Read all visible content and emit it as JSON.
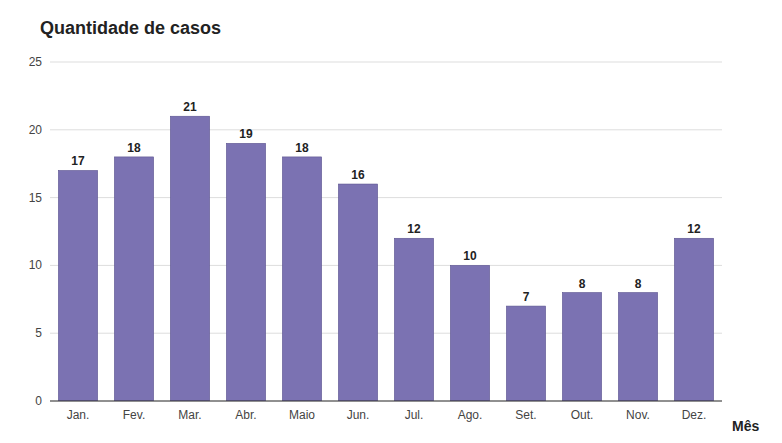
{
  "chart_data": {
    "type": "bar",
    "title": "Quantidade de casos",
    "xlabel": "Mês",
    "categories": [
      "Jan.",
      "Fev.",
      "Mar.",
      "Abr.",
      "Maio",
      "Jun.",
      "Jul.",
      "Ago.",
      "Set.",
      "Out.",
      "Nov.",
      "Dez."
    ],
    "values": [
      17,
      18,
      21,
      19,
      18,
      16,
      12,
      10,
      7,
      8,
      8,
      12
    ],
    "color": "#7b72b2",
    "ylim": [
      0,
      25
    ],
    "yticks": [
      0,
      5,
      10,
      15,
      20,
      25
    ],
    "grid": true,
    "data_labels": true
  }
}
